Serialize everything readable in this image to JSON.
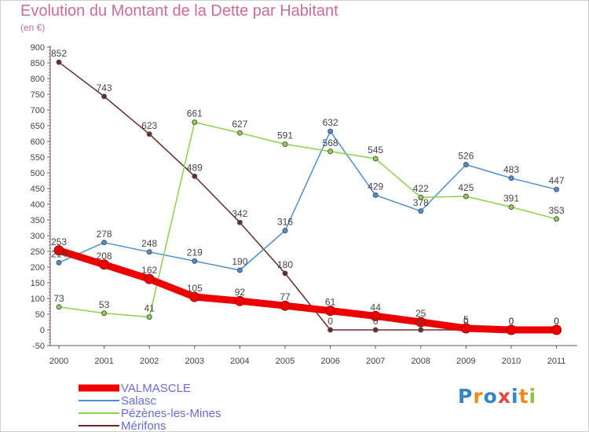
{
  "title": "Evolution du Montant de la Dette par Habitant",
  "subtitle": "(en €)",
  "logo": {
    "text": "Proxiti",
    "colors": [
      "#2f86c8",
      "#f08a1c",
      "#2f86c8",
      "#e8453c",
      "#2f86c8",
      "#f08a1c",
      "#8cc63f"
    ]
  },
  "chart_data": {
    "type": "line",
    "x": [
      "2000",
      "2001",
      "2002",
      "2003",
      "2004",
      "2005",
      "2006",
      "2007",
      "2008",
      "2009",
      "2010",
      "2011"
    ],
    "ylim": [
      -50,
      900
    ],
    "yticks": [
      -50,
      0,
      50,
      100,
      150,
      200,
      250,
      300,
      350,
      400,
      450,
      500,
      550,
      600,
      650,
      700,
      750,
      800,
      850,
      900
    ],
    "grid": false,
    "legend": "bottom-left",
    "series": [
      {
        "name": "VALMASCLE",
        "color": "#ee0000",
        "values": [
          253,
          208,
          162,
          105,
          92,
          77,
          61,
          44,
          25,
          5,
          0,
          0
        ],
        "labels": [
          "253",
          "208",
          "162",
          "105",
          "92",
          "77",
          "61",
          "44",
          "25",
          "5",
          "0",
          "0"
        ]
      },
      {
        "name": "Salasc",
        "color": "#4a90d9",
        "values": [
          214,
          278,
          248,
          219,
          190,
          316,
          632,
          429,
          378,
          526,
          483,
          447
        ],
        "labels": [
          "214",
          "278",
          "248",
          "219",
          "190",
          "316",
          "632",
          "429",
          "378",
          "526",
          "483",
          "447"
        ]
      },
      {
        "name": "Pézènes-les-Mines",
        "color": "#8ad44a",
        "values": [
          73,
          53,
          41,
          661,
          627,
          591,
          568,
          545,
          422,
          425,
          391,
          353
        ],
        "labels": [
          "73",
          "53",
          "41",
          "661",
          "627",
          "591",
          "568",
          "545",
          "422",
          "425",
          "391",
          "353"
        ]
      },
      {
        "name": "Mérifons",
        "color": "#6b2a2a",
        "values": [
          852,
          743,
          623,
          489,
          342,
          180,
          0,
          0,
          0,
          0,
          0,
          0
        ],
        "labels": [
          "852",
          "743",
          "623",
          "489",
          "342",
          "180",
          "0",
          "0",
          "0",
          "0",
          "0",
          "0"
        ]
      }
    ]
  }
}
